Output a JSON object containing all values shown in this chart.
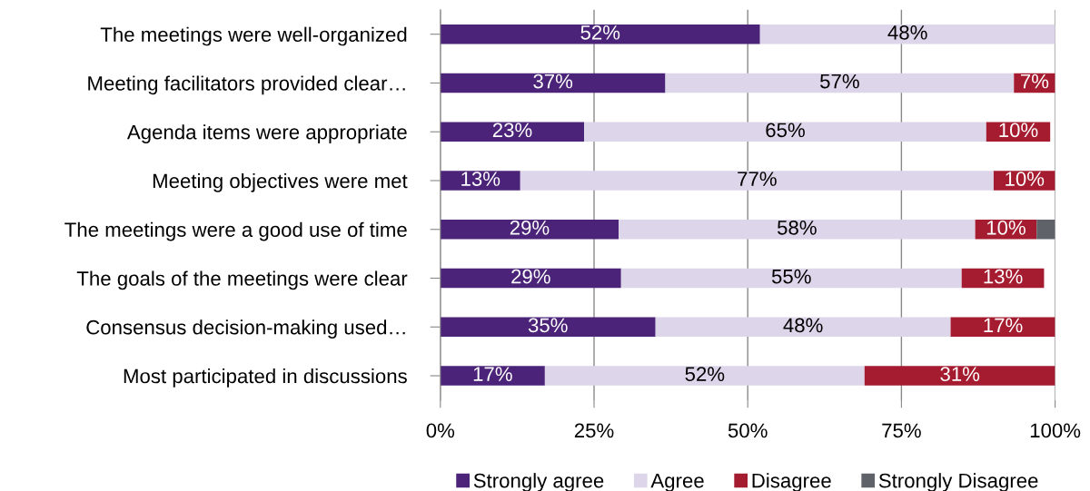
{
  "chart_data": {
    "type": "bar",
    "orientation": "horizontal",
    "stacked": true,
    "categories": [
      "The meetings were well-organized",
      "Meeting facilitators provided clear…",
      "Agenda items were appropriate",
      "Meeting objectives were met",
      "The meetings were a good use of time",
      "The goals of the meetings were clear",
      "Consensus decision-making used…",
      "Most participated in discussions"
    ],
    "series": [
      {
        "name": "Strongly agree",
        "color": "#4b2378",
        "values": [
          52,
          36.6,
          23.4,
          13,
          29,
          29.4,
          35,
          17
        ],
        "value_labels": [
          "52%",
          "37%",
          "23%",
          "13%",
          "29%",
          "29%",
          "35%",
          "17%"
        ]
      },
      {
        "name": "Agree",
        "color": "#ddd5ea",
        "values": [
          48,
          56.7,
          65.4,
          77,
          58,
          55.4,
          48,
          52
        ],
        "value_labels": [
          "48%",
          "57%",
          "65%",
          "77%",
          "58%",
          "55%",
          "48%",
          "52%"
        ]
      },
      {
        "name": "Disagree",
        "color": "#a51c30",
        "values": [
          null,
          6.7,
          10.4,
          10,
          10,
          13.4,
          17,
          31
        ],
        "value_labels": [
          null,
          "7%",
          "10%",
          "10%",
          "10%",
          "13%",
          "17%",
          "31%"
        ]
      },
      {
        "name": "Strongly Disagree",
        "color": "#5f6369",
        "values": [
          null,
          null,
          null,
          null,
          3,
          null,
          null,
          null
        ],
        "value_labels": [
          null,
          null,
          null,
          null,
          null,
          null,
          null,
          null
        ]
      }
    ],
    "xlim": [
      0,
      100
    ],
    "xticks": [
      {
        "value": 0,
        "label": "0%"
      },
      {
        "value": 25,
        "label": "25%"
      },
      {
        "value": 50,
        "label": "50%"
      },
      {
        "value": 75,
        "label": "75%"
      },
      {
        "value": 100,
        "label": "100%"
      }
    ],
    "grid": "x",
    "legend": "bottom"
  }
}
